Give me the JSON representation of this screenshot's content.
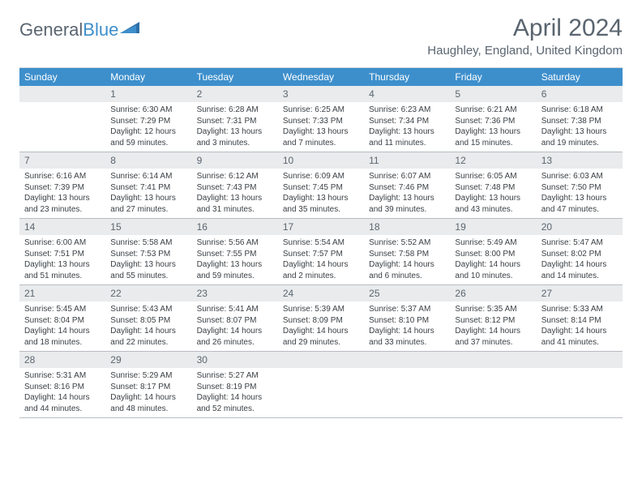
{
  "logo": {
    "part1": "General",
    "part2": "Blue"
  },
  "title": "April 2024",
  "location": "Haughley, England, United Kingdom",
  "days_of_week": [
    "Sunday",
    "Monday",
    "Tuesday",
    "Wednesday",
    "Thursday",
    "Friday",
    "Saturday"
  ],
  "colors": {
    "header_bg": "#3d8fcc",
    "header_text": "#ffffff",
    "daynum_bg": "#e9ebec",
    "text_gray": "#5a6570",
    "body_text": "#3a3f44",
    "border": "#b8bdc2"
  },
  "weeks": [
    [
      {
        "n": "",
        "sr": "",
        "ss": "",
        "dl": ""
      },
      {
        "n": "1",
        "sr": "Sunrise: 6:30 AM",
        "ss": "Sunset: 7:29 PM",
        "dl": "Daylight: 12 hours and 59 minutes."
      },
      {
        "n": "2",
        "sr": "Sunrise: 6:28 AM",
        "ss": "Sunset: 7:31 PM",
        "dl": "Daylight: 13 hours and 3 minutes."
      },
      {
        "n": "3",
        "sr": "Sunrise: 6:25 AM",
        "ss": "Sunset: 7:33 PM",
        "dl": "Daylight: 13 hours and 7 minutes."
      },
      {
        "n": "4",
        "sr": "Sunrise: 6:23 AM",
        "ss": "Sunset: 7:34 PM",
        "dl": "Daylight: 13 hours and 11 minutes."
      },
      {
        "n": "5",
        "sr": "Sunrise: 6:21 AM",
        "ss": "Sunset: 7:36 PM",
        "dl": "Daylight: 13 hours and 15 minutes."
      },
      {
        "n": "6",
        "sr": "Sunrise: 6:18 AM",
        "ss": "Sunset: 7:38 PM",
        "dl": "Daylight: 13 hours and 19 minutes."
      }
    ],
    [
      {
        "n": "7",
        "sr": "Sunrise: 6:16 AM",
        "ss": "Sunset: 7:39 PM",
        "dl": "Daylight: 13 hours and 23 minutes."
      },
      {
        "n": "8",
        "sr": "Sunrise: 6:14 AM",
        "ss": "Sunset: 7:41 PM",
        "dl": "Daylight: 13 hours and 27 minutes."
      },
      {
        "n": "9",
        "sr": "Sunrise: 6:12 AM",
        "ss": "Sunset: 7:43 PM",
        "dl": "Daylight: 13 hours and 31 minutes."
      },
      {
        "n": "10",
        "sr": "Sunrise: 6:09 AM",
        "ss": "Sunset: 7:45 PM",
        "dl": "Daylight: 13 hours and 35 minutes."
      },
      {
        "n": "11",
        "sr": "Sunrise: 6:07 AM",
        "ss": "Sunset: 7:46 PM",
        "dl": "Daylight: 13 hours and 39 minutes."
      },
      {
        "n": "12",
        "sr": "Sunrise: 6:05 AM",
        "ss": "Sunset: 7:48 PM",
        "dl": "Daylight: 13 hours and 43 minutes."
      },
      {
        "n": "13",
        "sr": "Sunrise: 6:03 AM",
        "ss": "Sunset: 7:50 PM",
        "dl": "Daylight: 13 hours and 47 minutes."
      }
    ],
    [
      {
        "n": "14",
        "sr": "Sunrise: 6:00 AM",
        "ss": "Sunset: 7:51 PM",
        "dl": "Daylight: 13 hours and 51 minutes."
      },
      {
        "n": "15",
        "sr": "Sunrise: 5:58 AM",
        "ss": "Sunset: 7:53 PM",
        "dl": "Daylight: 13 hours and 55 minutes."
      },
      {
        "n": "16",
        "sr": "Sunrise: 5:56 AM",
        "ss": "Sunset: 7:55 PM",
        "dl": "Daylight: 13 hours and 59 minutes."
      },
      {
        "n": "17",
        "sr": "Sunrise: 5:54 AM",
        "ss": "Sunset: 7:57 PM",
        "dl": "Daylight: 14 hours and 2 minutes."
      },
      {
        "n": "18",
        "sr": "Sunrise: 5:52 AM",
        "ss": "Sunset: 7:58 PM",
        "dl": "Daylight: 14 hours and 6 minutes."
      },
      {
        "n": "19",
        "sr": "Sunrise: 5:49 AM",
        "ss": "Sunset: 8:00 PM",
        "dl": "Daylight: 14 hours and 10 minutes."
      },
      {
        "n": "20",
        "sr": "Sunrise: 5:47 AM",
        "ss": "Sunset: 8:02 PM",
        "dl": "Daylight: 14 hours and 14 minutes."
      }
    ],
    [
      {
        "n": "21",
        "sr": "Sunrise: 5:45 AM",
        "ss": "Sunset: 8:04 PM",
        "dl": "Daylight: 14 hours and 18 minutes."
      },
      {
        "n": "22",
        "sr": "Sunrise: 5:43 AM",
        "ss": "Sunset: 8:05 PM",
        "dl": "Daylight: 14 hours and 22 minutes."
      },
      {
        "n": "23",
        "sr": "Sunrise: 5:41 AM",
        "ss": "Sunset: 8:07 PM",
        "dl": "Daylight: 14 hours and 26 minutes."
      },
      {
        "n": "24",
        "sr": "Sunrise: 5:39 AM",
        "ss": "Sunset: 8:09 PM",
        "dl": "Daylight: 14 hours and 29 minutes."
      },
      {
        "n": "25",
        "sr": "Sunrise: 5:37 AM",
        "ss": "Sunset: 8:10 PM",
        "dl": "Daylight: 14 hours and 33 minutes."
      },
      {
        "n": "26",
        "sr": "Sunrise: 5:35 AM",
        "ss": "Sunset: 8:12 PM",
        "dl": "Daylight: 14 hours and 37 minutes."
      },
      {
        "n": "27",
        "sr": "Sunrise: 5:33 AM",
        "ss": "Sunset: 8:14 PM",
        "dl": "Daylight: 14 hours and 41 minutes."
      }
    ],
    [
      {
        "n": "28",
        "sr": "Sunrise: 5:31 AM",
        "ss": "Sunset: 8:16 PM",
        "dl": "Daylight: 14 hours and 44 minutes."
      },
      {
        "n": "29",
        "sr": "Sunrise: 5:29 AM",
        "ss": "Sunset: 8:17 PM",
        "dl": "Daylight: 14 hours and 48 minutes."
      },
      {
        "n": "30",
        "sr": "Sunrise: 5:27 AM",
        "ss": "Sunset: 8:19 PM",
        "dl": "Daylight: 14 hours and 52 minutes."
      },
      {
        "n": "",
        "sr": "",
        "ss": "",
        "dl": ""
      },
      {
        "n": "",
        "sr": "",
        "ss": "",
        "dl": ""
      },
      {
        "n": "",
        "sr": "",
        "ss": "",
        "dl": ""
      },
      {
        "n": "",
        "sr": "",
        "ss": "",
        "dl": ""
      }
    ]
  ]
}
